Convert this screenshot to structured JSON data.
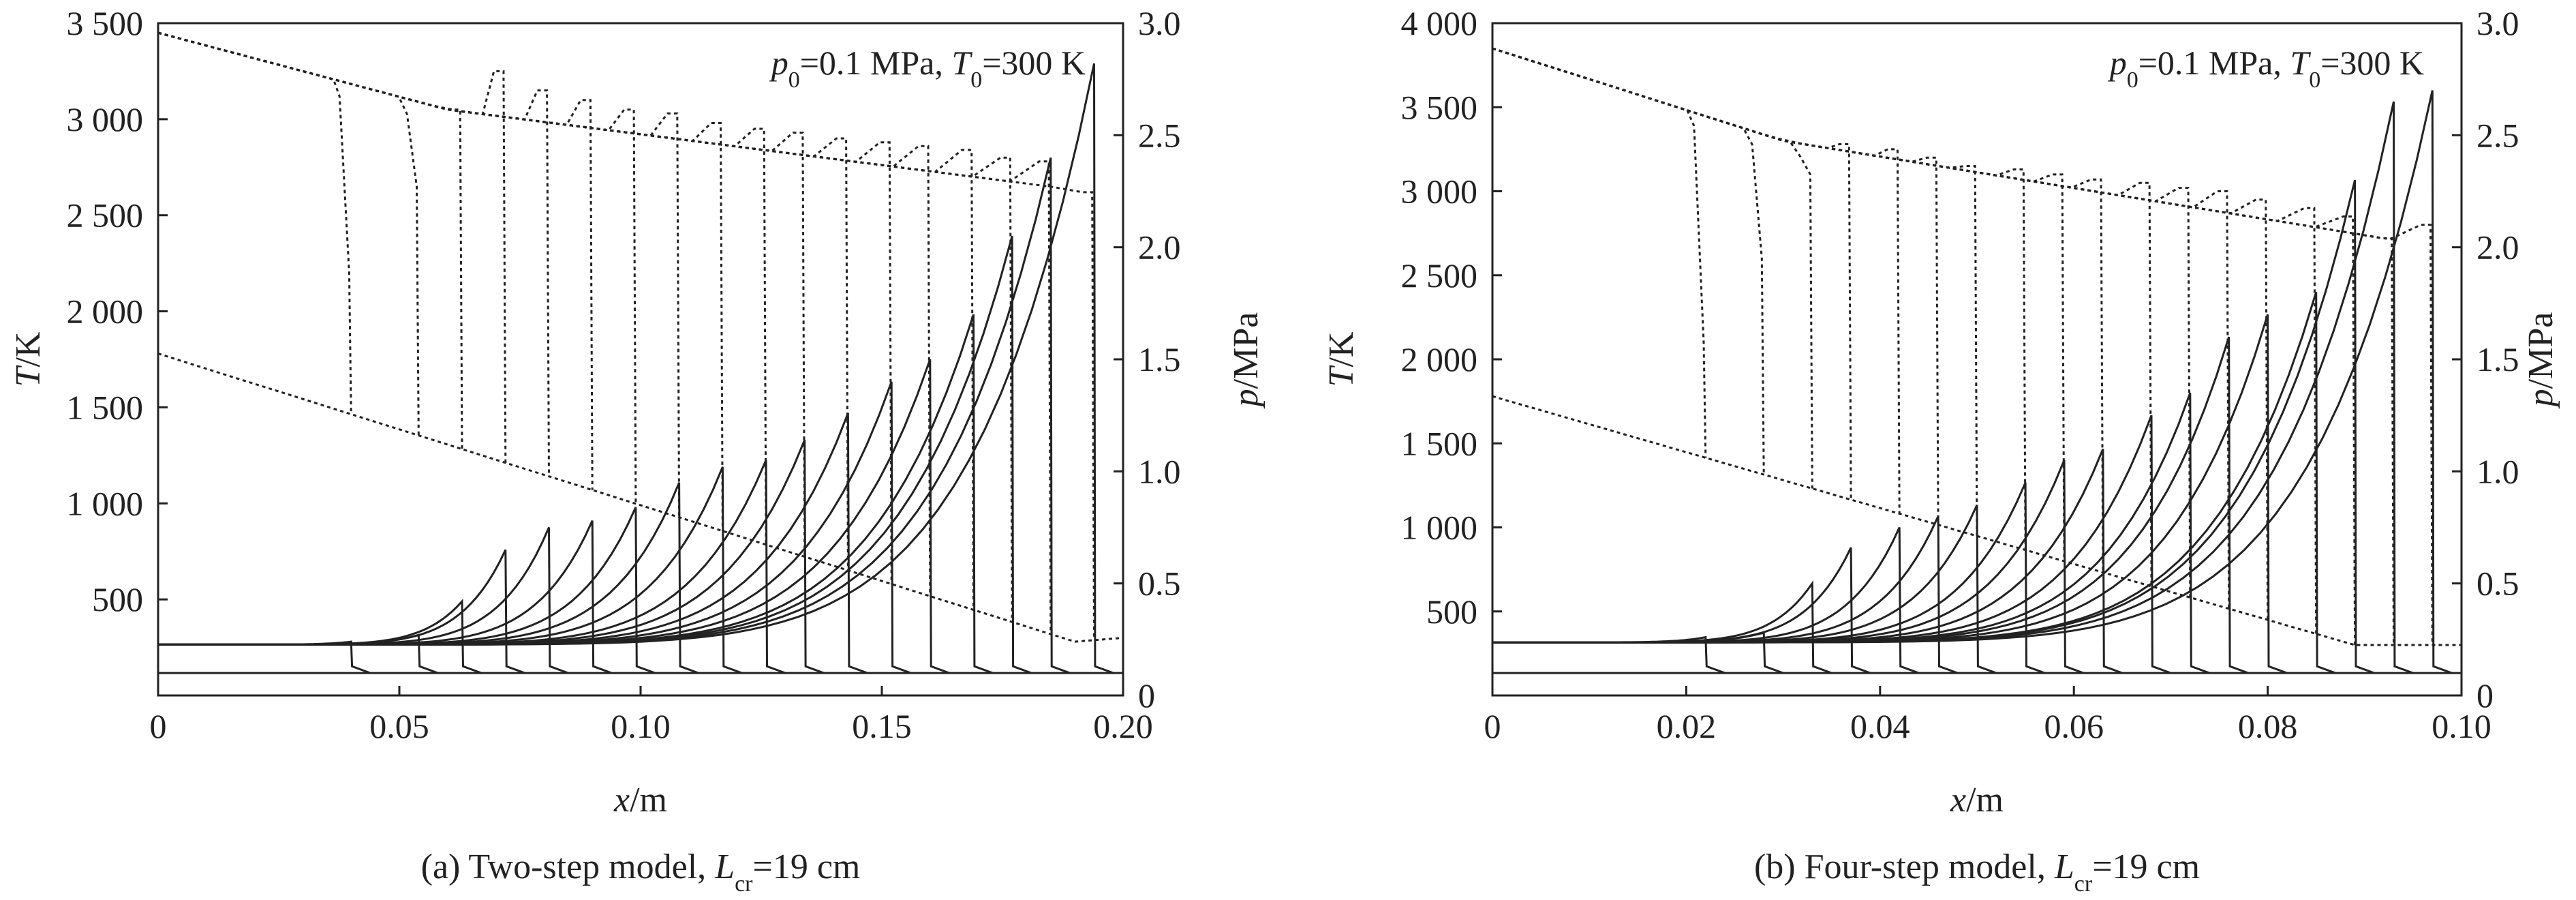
{
  "chart_data": [
    {
      "type": "line",
      "caption": {
        "prefix": "(a) Two-step model, ",
        "symbol": "L",
        "sub": "cr",
        "suffix": "=19 cm"
      },
      "annotation": {
        "p": "p",
        "p_sub": "0",
        "p_val": "=0.1 MPa, ",
        "T": "T",
        "T_sub": "0",
        "T_val": "=300 K"
      },
      "xlabel": {
        "var": "x",
        "unit": "/m"
      },
      "ylabel_left": {
        "var": "T",
        "unit": "/K"
      },
      "ylabel_right": {
        "var": "p",
        "unit": "/MPa"
      },
      "xlim": [
        0,
        0.2
      ],
      "ylim_left": [
        0,
        3500
      ],
      "ylim_right": [
        0,
        3.0
      ],
      "x_ticks": [
        0,
        0.05,
        0.1,
        0.15,
        0.2
      ],
      "x_tick_labels": [
        "0",
        "0.05",
        "0.10",
        "0.15",
        "0.20"
      ],
      "y_left_ticks": [
        500,
        1000,
        1500,
        2000,
        2500,
        3000,
        3500
      ],
      "y_left_tick_labels": [
        "500",
        "1 000",
        "1 500",
        "2 000",
        "2 500",
        "3 000",
        "3 500"
      ],
      "y_right_ticks": [
        0,
        0.5,
        1.0,
        1.5,
        2.0,
        2.5,
        3.0
      ],
      "y_right_tick_labels": [
        "0",
        "0.5",
        "1.0",
        "1.5",
        "2.0",
        "2.5",
        "3.0"
      ],
      "base_pressure": 0.1,
      "base_temperature": 300,
      "pressure_baseline": 0.227,
      "t_trend": {
        "x": [
          0,
          0.19
        ],
        "T": [
          1780,
          280
        ]
      },
      "t_burned": {
        "x": [
          0,
          0.06,
          0.194
        ],
        "T": [
          3450,
          3050,
          2620
        ]
      },
      "profiles": [
        {
          "x_front": 0.04,
          "p_peak": 0.24,
          "T_front": 2200
        },
        {
          "x_front": 0.054,
          "p_peak": 0.27,
          "T_front": 2650
        },
        {
          "x_front": 0.063,
          "p_peak": 0.42,
          "T_front": 3050
        },
        {
          "x_front": 0.072,
          "p_peak": 0.65,
          "T_front": 3250
        },
        {
          "x_front": 0.081,
          "p_peak": 0.75,
          "T_front": 3150
        },
        {
          "x_front": 0.09,
          "p_peak": 0.78,
          "T_front": 3100
        },
        {
          "x_front": 0.099,
          "p_peak": 0.84,
          "T_front": 3050
        },
        {
          "x_front": 0.108,
          "p_peak": 0.95,
          "T_front": 3030
        },
        {
          "x_front": 0.117,
          "p_peak": 1.02,
          "T_front": 2980
        },
        {
          "x_front": 0.126,
          "p_peak": 1.05,
          "T_front": 2950
        },
        {
          "x_front": 0.134,
          "p_peak": 1.14,
          "T_front": 2930
        },
        {
          "x_front": 0.143,
          "p_peak": 1.26,
          "T_front": 2900
        },
        {
          "x_front": 0.152,
          "p_peak": 1.4,
          "T_front": 2880
        },
        {
          "x_front": 0.16,
          "p_peak": 1.5,
          "T_front": 2860
        },
        {
          "x_front": 0.169,
          "p_peak": 1.7,
          "T_front": 2840
        },
        {
          "x_front": 0.177,
          "p_peak": 2.05,
          "T_front": 2800
        },
        {
          "x_front": 0.185,
          "p_peak": 2.4,
          "T_front": 2780
        },
        {
          "x_front": 0.194,
          "p_peak": 2.82,
          "T_front": 2620
        }
      ]
    },
    {
      "type": "line",
      "caption": {
        "prefix": "(b) Four-step model, ",
        "symbol": "L",
        "sub": "cr",
        "suffix": "=19 cm"
      },
      "annotation": {
        "p": "p",
        "p_sub": "0",
        "p_val": "=0.1 MPa, ",
        "T": "T",
        "T_sub": "0",
        "T_val": "=300 K"
      },
      "xlabel": {
        "var": "x",
        "unit": "/m"
      },
      "ylabel_left": {
        "var": "T",
        "unit": "/K"
      },
      "ylabel_right": {
        "var": "p",
        "unit": "/MPa"
      },
      "xlim": [
        0,
        0.1
      ],
      "ylim_left": [
        0,
        4000
      ],
      "ylim_right": [
        0,
        3.0
      ],
      "x_ticks": [
        0,
        0.02,
        0.04,
        0.06,
        0.08,
        0.1
      ],
      "x_tick_labels": [
        "0",
        "0.02",
        "0.04",
        "0.06",
        "0.08",
        "0.10"
      ],
      "y_left_ticks": [
        500,
        1000,
        1500,
        2000,
        2500,
        3000,
        3500,
        4000
      ],
      "y_left_tick_labels": [
        "500",
        "1 000",
        "1 500",
        "2 000",
        "2 500",
        "3 000",
        "3 500",
        "4 000"
      ],
      "y_right_ticks": [
        0,
        0.5,
        1.0,
        1.5,
        2.0,
        2.5,
        3.0
      ],
      "y_right_tick_labels": [
        "0",
        "0.5",
        "1.0",
        "1.5",
        "2.0",
        "2.5",
        "3.0"
      ],
      "base_pressure": 0.1,
      "base_temperature": 300,
      "pressure_baseline": 0.237,
      "t_trend": {
        "x": [
          0,
          0.089
        ],
        "T": [
          1780,
          300
        ]
      },
      "t_burned": {
        "x": [
          0,
          0.03,
          0.092
        ],
        "T": [
          3850,
          3300,
          2720
        ]
      },
      "profiles": [
        {
          "x_front": 0.022,
          "p_peak": 0.26,
          "T_front": 2100
        },
        {
          "x_front": 0.028,
          "p_peak": 0.28,
          "T_front": 2600
        },
        {
          "x_front": 0.033,
          "p_peak": 0.5,
          "T_front": 3100
        },
        {
          "x_front": 0.037,
          "p_peak": 0.66,
          "T_front": 3280
        },
        {
          "x_front": 0.042,
          "p_peak": 0.75,
          "T_front": 3250
        },
        {
          "x_front": 0.046,
          "p_peak": 0.8,
          "T_front": 3200
        },
        {
          "x_front": 0.05,
          "p_peak": 0.85,
          "T_front": 3150
        },
        {
          "x_front": 0.055,
          "p_peak": 0.95,
          "T_front": 3130
        },
        {
          "x_front": 0.059,
          "p_peak": 1.05,
          "T_front": 3100
        },
        {
          "x_front": 0.063,
          "p_peak": 1.1,
          "T_front": 3070
        },
        {
          "x_front": 0.068,
          "p_peak": 1.25,
          "T_front": 3050
        },
        {
          "x_front": 0.072,
          "p_peak": 1.35,
          "T_front": 3020
        },
        {
          "x_front": 0.076,
          "p_peak": 1.6,
          "T_front": 3000
        },
        {
          "x_front": 0.08,
          "p_peak": 1.7,
          "T_front": 2950
        },
        {
          "x_front": 0.085,
          "p_peak": 1.8,
          "T_front": 2900
        },
        {
          "x_front": 0.089,
          "p_peak": 2.3,
          "T_front": 2850
        },
        {
          "x_front": 0.093,
          "p_peak": 2.65,
          "T_front": 2720
        },
        {
          "x_front": 0.097,
          "p_peak": 2.7,
          "T_front": 2800
        }
      ]
    }
  ]
}
